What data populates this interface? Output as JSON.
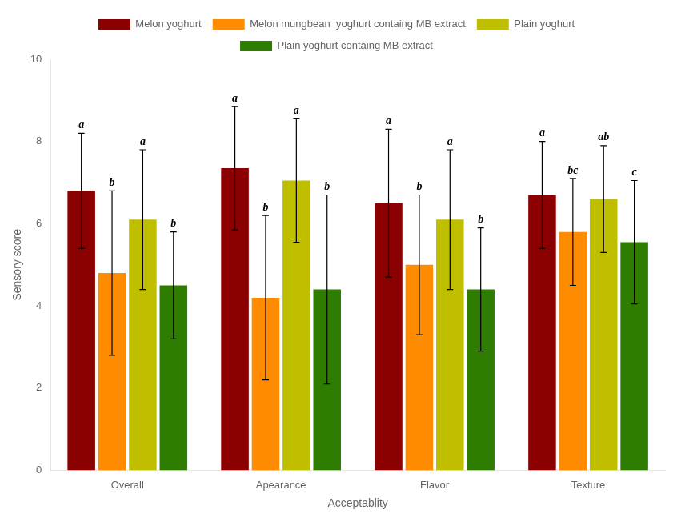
{
  "chart_data": {
    "type": "bar",
    "categories": [
      "Overall",
      "Apearance",
      "Flavor",
      "Texture"
    ],
    "series": [
      {
        "name": "Melon yoghurt",
        "color": "#8B0000",
        "values": [
          6.8,
          7.35,
          6.5,
          6.7
        ],
        "errors": [
          1.4,
          1.5,
          1.8,
          1.3
        ],
        "annotations": [
          "a",
          "a",
          "a",
          "a"
        ]
      },
      {
        "name": "Melon mungbean  yoghurt containg MB extract",
        "color": "#FF8C00",
        "values": [
          4.8,
          4.2,
          5.0,
          5.8
        ],
        "errors": [
          2.0,
          2.0,
          1.7,
          1.3
        ],
        "annotations": [
          "b",
          "b",
          "b",
          "bc"
        ]
      },
      {
        "name": "Plain yoghurt",
        "color": "#BFBF00",
        "values": [
          6.1,
          7.05,
          6.1,
          6.6
        ],
        "errors": [
          1.7,
          1.5,
          1.7,
          1.3
        ],
        "annotations": [
          "a",
          "a",
          "a",
          "ab"
        ]
      },
      {
        "name": "Plain yoghurt containg MB extract",
        "color": "#2E7D00",
        "values": [
          4.5,
          4.4,
          4.4,
          5.55
        ],
        "errors": [
          1.3,
          2.3,
          1.5,
          1.5
        ],
        "annotations": [
          "b",
          "b",
          "b",
          "c"
        ]
      }
    ],
    "xlabel": "Acceptablity",
    "ylabel": "Sensory score",
    "ylim": [
      0,
      10
    ],
    "yticks": [
      0,
      2,
      4,
      6,
      8,
      10
    ],
    "grid": false,
    "legend": "top"
  }
}
